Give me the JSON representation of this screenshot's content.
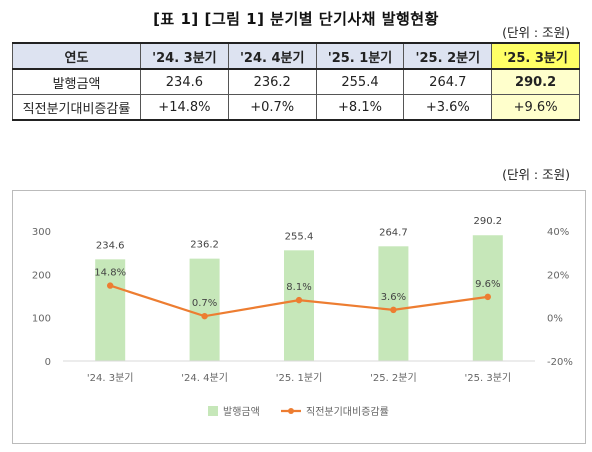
{
  "header": {
    "title": "[표 1] [그림 1] 분기별 단기사채 발행현황",
    "unit_table": "(단위 : 조원)",
    "unit_chart": "(단위 : 조원)"
  },
  "table": {
    "corner_label": "연도",
    "columns": [
      "'24. 3분기",
      "'24. 4분기",
      "'25. 1분기",
      "'25. 2분기",
      "'25. 3분기"
    ],
    "rows": [
      {
        "label": "발행금액",
        "values": [
          "234.6",
          "236.2",
          "255.4",
          "264.7",
          "290.2"
        ]
      },
      {
        "label": "직전분기대비증감률",
        "values": [
          "+14.8%",
          "+0.7%",
          "+8.1%",
          "+3.6%",
          "+9.6%"
        ]
      }
    ],
    "highlight_color": "#ffff66"
  },
  "chart_data": {
    "type": "bar",
    "categories": [
      "'24. 3분기",
      "'24. 4분기",
      "'25. 1분기",
      "'25. 2분기",
      "'25. 3분기"
    ],
    "series": [
      {
        "name": "발행금액",
        "type": "bar",
        "axis": "left",
        "values": [
          234.6,
          236.2,
          255.4,
          264.7,
          290.2
        ],
        "labels": [
          "234.6",
          "236.2",
          "255.4",
          "264.7",
          "290.2"
        ],
        "color": "#c6e7b9"
      },
      {
        "name": "직전분기대비증감률",
        "type": "line",
        "axis": "right",
        "values": [
          14.8,
          0.7,
          8.1,
          3.6,
          9.6
        ],
        "labels": [
          "14.8%",
          "0.7%",
          "8.1%",
          "3.6%",
          "9.6%"
        ],
        "color": "#ed7d31"
      }
    ],
    "ylim_left": [
      0,
      300
    ],
    "yticks_left": [
      "0",
      "100",
      "200",
      "300"
    ],
    "ylim_right": [
      -20,
      40
    ],
    "yticks_right": [
      "-20%",
      "0%",
      "20%",
      "40%"
    ],
    "grid": false,
    "legend_position": "bottom"
  }
}
